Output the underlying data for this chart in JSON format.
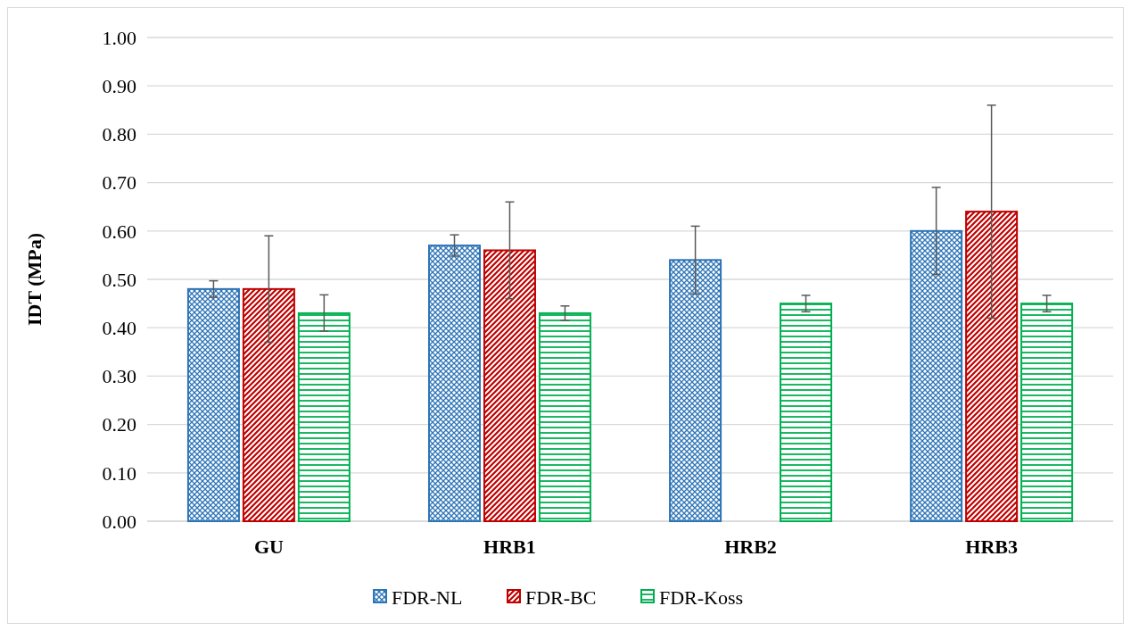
{
  "chart_data": {
    "type": "bar",
    "ylabel": "IDT (MPa)",
    "categories": [
      "GU",
      "HRB1",
      "HRB2",
      "HRB3"
    ],
    "series": [
      {
        "name": "FDR-NL",
        "color": "#2e75b6",
        "values": [
          0.48,
          0.57,
          0.54,
          0.6
        ],
        "errors": [
          [
            0.463,
            0.497
          ],
          [
            0.548,
            0.592
          ],
          [
            0.47,
            0.61
          ],
          [
            0.51,
            0.69
          ]
        ]
      },
      {
        "name": "FDR-BC",
        "color": "#c00000",
        "values": [
          0.48,
          0.56,
          null,
          0.64
        ],
        "errors": [
          [
            0.37,
            0.59
          ],
          [
            0.46,
            0.66
          ],
          null,
          [
            0.42,
            0.86
          ]
        ]
      },
      {
        "name": "FDR-Koss",
        "color": "#00b050",
        "values": [
          0.43,
          0.43,
          0.45,
          0.45
        ],
        "errors": [
          [
            0.393,
            0.468
          ],
          [
            0.415,
            0.445
          ],
          [
            0.433,
            0.467
          ],
          [
            0.433,
            0.467
          ]
        ]
      }
    ],
    "ylim": [
      0,
      1
    ],
    "yticks": [
      {
        "value": 0,
        "label": "0.00"
      },
      {
        "value": 0.1,
        "label": "0.10"
      },
      {
        "value": 0.2,
        "label": "0.20"
      },
      {
        "value": 0.3,
        "label": "0.30"
      },
      {
        "value": 0.4,
        "label": "0.40"
      },
      {
        "value": 0.5,
        "label": "0.50"
      },
      {
        "value": 0.6,
        "label": "0.60"
      },
      {
        "value": 0.7,
        "label": "0.70"
      },
      {
        "value": 0.8,
        "label": "0.80"
      },
      {
        "value": 0.9,
        "label": "0.90"
      },
      {
        "value": 1,
        "label": "1.00"
      }
    ],
    "grid": "y",
    "legend": "bottom"
  }
}
